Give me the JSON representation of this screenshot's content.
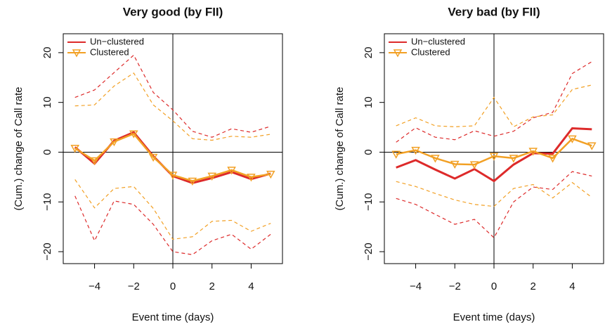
{
  "chart_data": [
    {
      "type": "line",
      "title": "Very good (by FII)",
      "xlabel": "Event time (days)",
      "ylabel": "(Cum.) change of Call rate",
      "x": [
        -5,
        -4,
        -3,
        -2,
        -1,
        0,
        1,
        2,
        3,
        4,
        5
      ],
      "xlim": [
        -5.6,
        5.6
      ],
      "ylim": [
        -22.4,
        23.8
      ],
      "xticks": [
        {
          "value": -4,
          "label": "−4"
        },
        {
          "value": -2,
          "label": "−2"
        },
        0,
        2,
        4
      ],
      "yticks": [
        {
          "value": -20,
          "label": "−20"
        },
        {
          "value": -10,
          "label": "−10"
        },
        0,
        10,
        20
      ],
      "reference_lines": {
        "x": 0,
        "y": 0
      },
      "legend": "upper left",
      "series": [
        {
          "name": "Un−clustered",
          "color": "#dd2a2a",
          "marker": "none",
          "values": [
            1,
            -2.3,
            2.3,
            4,
            -0.8,
            -4.8,
            -6.2,
            -5.2,
            -4,
            -5.4,
            -4.3
          ],
          "upper": [
            11,
            12.5,
            16,
            19.5,
            12,
            8.5,
            4.2,
            3,
            4.7,
            4,
            5.2
          ],
          "lower": [
            -8.8,
            -17.8,
            -9.8,
            -10.5,
            -14.5,
            -20,
            -20.6,
            -17.8,
            -16.5,
            -19.5,
            -16.5
          ]
        },
        {
          "name": "Clustered",
          "color": "#f2a024",
          "marker": "triangle-down",
          "values": [
            0.8,
            -1.7,
            2.1,
            3.7,
            -1,
            -4.6,
            -5.8,
            -4.8,
            -3.6,
            -5,
            -4.4
          ],
          "upper": [
            9.3,
            9.5,
            13.3,
            15.9,
            9.5,
            6.3,
            2.7,
            2.4,
            3.2,
            3,
            3.6
          ],
          "lower": [
            -5.5,
            -11.2,
            -7.3,
            -6.9,
            -11.3,
            -17.5,
            -17,
            -13.9,
            -13.7,
            -15.9,
            -14.3
          ]
        }
      ]
    },
    {
      "type": "line",
      "title": "Very bad (by FII)",
      "xlabel": "Event time (days)",
      "ylabel": "(Cum.) change of Call rate",
      "x": [
        -5,
        -4,
        -3,
        -2,
        -1,
        0,
        1,
        2,
        3,
        4,
        5
      ],
      "xlim": [
        -5.6,
        5.6
      ],
      "ylim": [
        -22.4,
        23.8
      ],
      "xticks": [
        {
          "value": -4,
          "label": "−4"
        },
        {
          "value": -2,
          "label": "−2"
        },
        0,
        2,
        4
      ],
      "yticks": [
        {
          "value": -20,
          "label": "−20"
        },
        {
          "value": -10,
          "label": "−10"
        },
        0,
        10,
        20
      ],
      "reference_lines": {
        "x": 0,
        "y": 0
      },
      "legend": "upper left",
      "series": [
        {
          "name": "Un−clustered",
          "color": "#dd2a2a",
          "marker": "none",
          "values": [
            -3.1,
            -1.6,
            -3.5,
            -5.3,
            -3.4,
            -5.8,
            -2.5,
            -0.2,
            -0.3,
            4.8,
            4.6
          ],
          "upper": [
            2,
            4.9,
            3,
            2.5,
            4.3,
            3.2,
            4.2,
            6.9,
            8,
            15.8,
            18.2
          ],
          "lower": [
            -9.3,
            -10.5,
            -12.5,
            -14.5,
            -13.5,
            -17.2,
            -10,
            -7,
            -7.5,
            -3.9,
            -4.8
          ]
        },
        {
          "name": "Clustered",
          "color": "#f2a024",
          "marker": "triangle-down",
          "values": [
            -0.4,
            0.4,
            -1.2,
            -2.4,
            -2.5,
            -0.8,
            -1.2,
            0.2,
            -1.2,
            2.7,
            1.3
          ],
          "upper": [
            5.3,
            6.9,
            5.3,
            5.1,
            5.3,
            11,
            5.1,
            7.1,
            7.5,
            12.6,
            13.5
          ],
          "lower": [
            -5.9,
            -6.9,
            -8.3,
            -9.6,
            -10.5,
            -10.9,
            -7.3,
            -6.5,
            -9.2,
            -6.1,
            -9.1
          ]
        }
      ]
    }
  ]
}
